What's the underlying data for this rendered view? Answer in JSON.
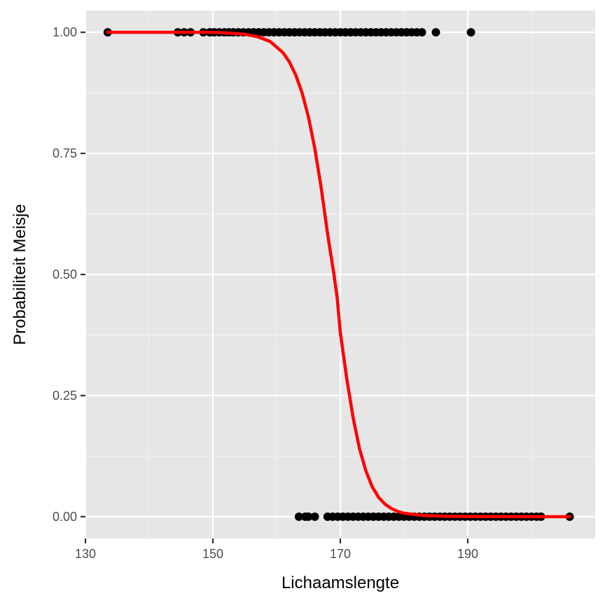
{
  "chart_data": {
    "type": "scatter",
    "title": "",
    "xlabel": "Lichaamslengte",
    "ylabel": "Probabiliteit Meisje",
    "xlim": [
      130,
      210
    ],
    "ylim": [
      -0.045,
      1.045
    ],
    "x_ticks": [
      130,
      150,
      170,
      190
    ],
    "y_ticks": [
      0.0,
      0.25,
      0.5,
      0.75,
      1.0
    ],
    "x_tick_labels": [
      "130",
      "150",
      "170",
      "190"
    ],
    "y_tick_labels": [
      "0.00",
      "0.25",
      "0.50",
      "0.75",
      "1.00"
    ],
    "grid": true,
    "legend": "none",
    "series": [
      {
        "type": "scatter",
        "color": "#000000",
        "points": [
          {
            "x": 133.5,
            "y": 1
          },
          {
            "x": 144.5,
            "y": 1
          },
          {
            "x": 145.5,
            "y": 1
          },
          {
            "x": 146.5,
            "y": 1
          },
          {
            "x": 148.5,
            "y": 1
          },
          {
            "x": 149.5,
            "y": 1
          },
          {
            "x": 150.2,
            "y": 1
          },
          {
            "x": 151,
            "y": 1
          },
          {
            "x": 151.8,
            "y": 1
          },
          {
            "x": 152.5,
            "y": 1
          },
          {
            "x": 153.2,
            "y": 1
          },
          {
            "x": 154,
            "y": 1
          },
          {
            "x": 154.8,
            "y": 1
          },
          {
            "x": 155.6,
            "y": 1
          },
          {
            "x": 156.4,
            "y": 1
          },
          {
            "x": 157.2,
            "y": 1
          },
          {
            "x": 158,
            "y": 1
          },
          {
            "x": 158.8,
            "y": 1
          },
          {
            "x": 159.6,
            "y": 1
          },
          {
            "x": 160.4,
            "y": 1
          },
          {
            "x": 161.2,
            "y": 1
          },
          {
            "x": 162,
            "y": 1
          },
          {
            "x": 162.8,
            "y": 1
          },
          {
            "x": 163.6,
            "y": 1
          },
          {
            "x": 164.4,
            "y": 1
          },
          {
            "x": 165.2,
            "y": 1
          },
          {
            "x": 166,
            "y": 1
          },
          {
            "x": 166.8,
            "y": 1
          },
          {
            "x": 167.6,
            "y": 1
          },
          {
            "x": 168.4,
            "y": 1
          },
          {
            "x": 169.2,
            "y": 1
          },
          {
            "x": 170,
            "y": 1
          },
          {
            "x": 170.8,
            "y": 1
          },
          {
            "x": 171.6,
            "y": 1
          },
          {
            "x": 172.4,
            "y": 1
          },
          {
            "x": 173.2,
            "y": 1
          },
          {
            "x": 174,
            "y": 1
          },
          {
            "x": 174.8,
            "y": 1
          },
          {
            "x": 175.6,
            "y": 1
          },
          {
            "x": 176.4,
            "y": 1
          },
          {
            "x": 177.2,
            "y": 1
          },
          {
            "x": 178,
            "y": 1
          },
          {
            "x": 178.8,
            "y": 1
          },
          {
            "x": 179.6,
            "y": 1
          },
          {
            "x": 180.4,
            "y": 1
          },
          {
            "x": 181.2,
            "y": 1
          },
          {
            "x": 182,
            "y": 1
          },
          {
            "x": 182.8,
            "y": 1
          },
          {
            "x": 185,
            "y": 1
          },
          {
            "x": 190.5,
            "y": 1
          },
          {
            "x": 163.5,
            "y": 0
          },
          {
            "x": 164.5,
            "y": 0
          },
          {
            "x": 165,
            "y": 0
          },
          {
            "x": 166,
            "y": 0
          },
          {
            "x": 168,
            "y": 0
          },
          {
            "x": 168.8,
            "y": 0
          },
          {
            "x": 169.6,
            "y": 0
          },
          {
            "x": 170.4,
            "y": 0
          },
          {
            "x": 171.2,
            "y": 0
          },
          {
            "x": 172,
            "y": 0
          },
          {
            "x": 172.8,
            "y": 0
          },
          {
            "x": 173.6,
            "y": 0
          },
          {
            "x": 174.4,
            "y": 0
          },
          {
            "x": 175.2,
            "y": 0
          },
          {
            "x": 176,
            "y": 0
          },
          {
            "x": 176.8,
            "y": 0
          },
          {
            "x": 177.6,
            "y": 0
          },
          {
            "x": 178.4,
            "y": 0
          },
          {
            "x": 179.2,
            "y": 0
          },
          {
            "x": 180,
            "y": 0
          },
          {
            "x": 180.8,
            "y": 0
          },
          {
            "x": 181.6,
            "y": 0
          },
          {
            "x": 182.4,
            "y": 0
          },
          {
            "x": 183.2,
            "y": 0
          },
          {
            "x": 184,
            "y": 0
          },
          {
            "x": 184.8,
            "y": 0
          },
          {
            "x": 185.6,
            "y": 0
          },
          {
            "x": 186.4,
            "y": 0
          },
          {
            "x": 187.2,
            "y": 0
          },
          {
            "x": 188,
            "y": 0
          },
          {
            "x": 188.8,
            "y": 0
          },
          {
            "x": 189.6,
            "y": 0
          },
          {
            "x": 190.4,
            "y": 0
          },
          {
            "x": 191.2,
            "y": 0
          },
          {
            "x": 192,
            "y": 0
          },
          {
            "x": 192.8,
            "y": 0
          },
          {
            "x": 193.6,
            "y": 0
          },
          {
            "x": 194.4,
            "y": 0
          },
          {
            "x": 195.2,
            "y": 0
          },
          {
            "x": 196,
            "y": 0
          },
          {
            "x": 196.8,
            "y": 0
          },
          {
            "x": 197.6,
            "y": 0
          },
          {
            "x": 198.4,
            "y": 0
          },
          {
            "x": 199.2,
            "y": 0
          },
          {
            "x": 200,
            "y": 0
          },
          {
            "x": 200.8,
            "y": 0
          },
          {
            "x": 201.5,
            "y": 0
          },
          {
            "x": 206,
            "y": 0
          }
        ]
      },
      {
        "type": "line",
        "color": "#ff0000",
        "points": [
          {
            "x": 133.5,
            "y": 1.0
          },
          {
            "x": 140,
            "y": 1.0
          },
          {
            "x": 145,
            "y": 1.0
          },
          {
            "x": 150,
            "y": 1.0
          },
          {
            "x": 153,
            "y": 0.998
          },
          {
            "x": 155,
            "y": 0.996
          },
          {
            "x": 157,
            "y": 0.991
          },
          {
            "x": 159,
            "y": 0.981
          },
          {
            "x": 161,
            "y": 0.958
          },
          {
            "x": 162,
            "y": 0.939
          },
          {
            "x": 163,
            "y": 0.912
          },
          {
            "x": 164,
            "y": 0.875
          },
          {
            "x": 165,
            "y": 0.825
          },
          {
            "x": 166,
            "y": 0.76
          },
          {
            "x": 167,
            "y": 0.679
          },
          {
            "x": 168,
            "y": 0.584
          },
          {
            "x": 169,
            "y": 0.5
          },
          {
            "x": 169.5,
            "y": 0.453
          },
          {
            "x": 170,
            "y": 0.38
          },
          {
            "x": 171,
            "y": 0.286
          },
          {
            "x": 172,
            "y": 0.205
          },
          {
            "x": 173,
            "y": 0.141
          },
          {
            "x": 174,
            "y": 0.095
          },
          {
            "x": 175,
            "y": 0.062
          },
          {
            "x": 176,
            "y": 0.04
          },
          {
            "x": 177,
            "y": 0.026
          },
          {
            "x": 178,
            "y": 0.017
          },
          {
            "x": 179,
            "y": 0.011
          },
          {
            "x": 180,
            "y": 0.007
          },
          {
            "x": 183,
            "y": 0.0025
          },
          {
            "x": 186,
            "y": 0.001
          },
          {
            "x": 190,
            "y": 0.0003
          },
          {
            "x": 200,
            "y": 0.0
          },
          {
            "x": 206,
            "y": 0.0
          }
        ]
      }
    ]
  }
}
